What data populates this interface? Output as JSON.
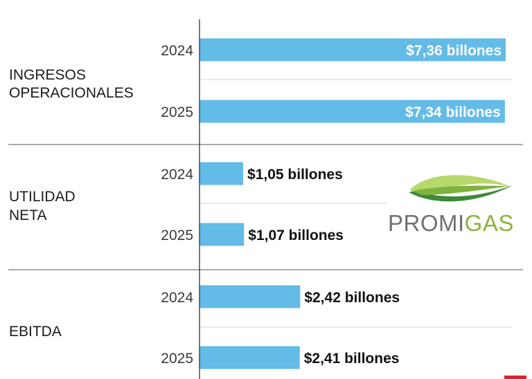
{
  "chart_data": {
    "type": "bar",
    "orientation": "horizontal",
    "unit": "billones",
    "groups": [
      {
        "label_lines": [
          "INGRESOS",
          "OPERACIONALES"
        ],
        "bars": [
          {
            "year": "2024",
            "value": 7.36,
            "label": "$7,36 billones"
          },
          {
            "year": "2025",
            "value": 7.34,
            "label": "$7,34 billones"
          }
        ]
      },
      {
        "label_lines": [
          "UTILIDAD",
          "NETA"
        ],
        "bars": [
          {
            "year": "2024",
            "value": 1.05,
            "label": "$1,05 billones"
          },
          {
            "year": "2025",
            "value": 1.07,
            "label": "$1,07 billones"
          }
        ]
      },
      {
        "label_lines": [
          "EBITDA"
        ],
        "bars": [
          {
            "year": "2024",
            "value": 2.42,
            "label": "$2,42 billones"
          },
          {
            "year": "2025",
            "value": 2.41,
            "label": "$2,41 billones"
          }
        ]
      }
    ],
    "xlim": [
      0,
      7.36
    ],
    "grid": false,
    "legend": "none"
  },
  "logo": {
    "text_part1": "PROMI",
    "text_part2": "GAS"
  },
  "colors": {
    "bar": "#63bbe8",
    "value_inside": "#ffffff",
    "value_outside": "#111111",
    "group_divider": "#555555",
    "year_divider": "#d6d6d6",
    "axis": "#333333",
    "logo_gray": "#6e7173",
    "logo_green": "#8bb43c",
    "accent_red": "#d9262c"
  }
}
